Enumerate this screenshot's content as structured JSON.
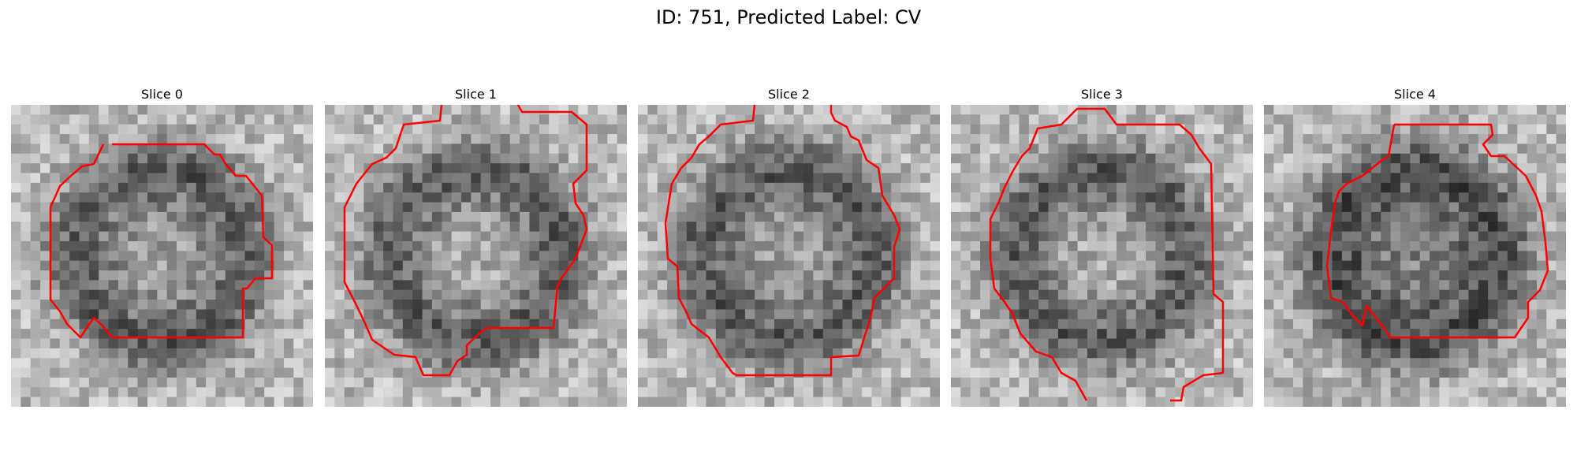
{
  "figure": {
    "title": "ID: 751, Predicted Label: CV"
  },
  "panels": [
    {
      "title": "Slice 0"
    },
    {
      "title": "Slice 1"
    },
    {
      "title": "Slice 2"
    },
    {
      "title": "Slice 3"
    },
    {
      "title": "Slice 4"
    }
  ],
  "colors": {
    "contour": "#ff0000",
    "background": "#ffffff"
  }
}
